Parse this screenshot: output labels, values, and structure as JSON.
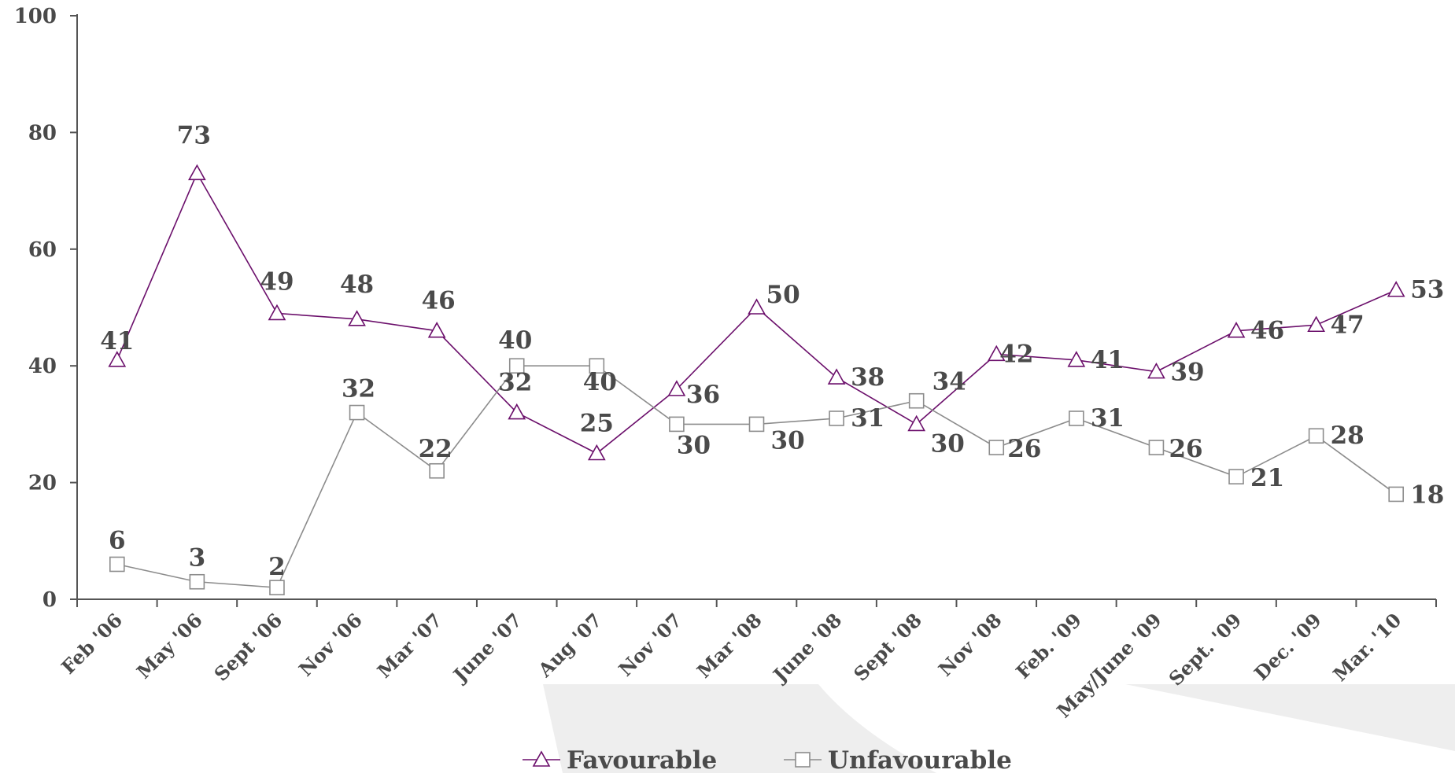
{
  "chart_data": {
    "type": "line",
    "categories": [
      "Feb '06",
      "May '06",
      "Sept '06",
      "Nov '06",
      "Mar '07",
      "June '07",
      "Aug '07",
      "Nov '07",
      "Mar '08",
      "June '08",
      "Sept '08",
      "Nov '08",
      "Feb. '09",
      "May/June '09",
      "Sept. '09",
      "Dec. '09",
      "Mar. '10"
    ],
    "series": [
      {
        "name": "Favourable",
        "values": [
          41,
          73,
          49,
          48,
          46,
          32,
          25,
          36,
          50,
          38,
          30,
          42,
          41,
          39,
          46,
          47,
          53
        ],
        "color": "#6b0f6b",
        "marker": "triangle"
      },
      {
        "name": "Unfavourable",
        "values": [
          6,
          3,
          2,
          32,
          22,
          40,
          40,
          30,
          30,
          31,
          34,
          26,
          31,
          26,
          21,
          28,
          18
        ],
        "color": "#8c8c8c",
        "marker": "square"
      }
    ],
    "yticks": [
      "0",
      "20",
      "40",
      "60",
      "80",
      "100"
    ],
    "ylim": [
      0,
      100
    ],
    "title": "",
    "xlabel": "",
    "ylabel": "",
    "grid": false,
    "legend_position": "bottom",
    "colors": {
      "axis": "#555555",
      "text": "#4a4a4a",
      "watermark": "#eeeeee"
    }
  }
}
